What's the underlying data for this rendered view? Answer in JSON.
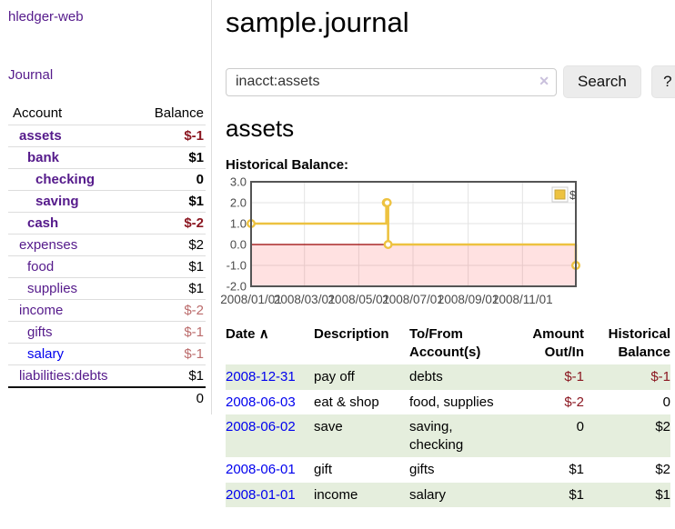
{
  "app": {
    "title": "hledger-web"
  },
  "sidebar": {
    "nav_journal": "Journal",
    "accounts_table": {
      "header_account": "Account",
      "header_balance": "Balance",
      "rows": [
        {
          "name": "assets",
          "depth": 1,
          "balance": "$-1",
          "bold": true,
          "balance_style": "negative"
        },
        {
          "name": "bank",
          "depth": 2,
          "balance": "$1",
          "bold": true,
          "balance_style": "normal"
        },
        {
          "name": "checking",
          "depth": 3,
          "balance": "0",
          "bold": true,
          "balance_style": "normal"
        },
        {
          "name": "saving",
          "depth": 3,
          "balance": "$1",
          "bold": true,
          "balance_style": "normal"
        },
        {
          "name": "cash",
          "depth": 2,
          "balance": "$-2",
          "bold": true,
          "balance_style": "negative"
        },
        {
          "name": "expenses",
          "depth": 1,
          "balance": "$2",
          "bold": false,
          "balance_style": "normal"
        },
        {
          "name": "food",
          "depth": 2,
          "balance": "$1",
          "bold": false,
          "balance_style": "normal"
        },
        {
          "name": "supplies",
          "depth": 2,
          "balance": "$1",
          "bold": false,
          "balance_style": "normal"
        },
        {
          "name": "income",
          "depth": 1,
          "balance": "$-2",
          "bold": false,
          "balance_style": "negative-dim"
        },
        {
          "name": "gifts",
          "depth": 2,
          "balance": "$-1",
          "bold": false,
          "balance_style": "negative-dim"
        },
        {
          "name": "salary",
          "depth": 2,
          "balance": "$-1",
          "bold": false,
          "balance_style": "negative-dim",
          "link_style": "unvisited"
        },
        {
          "name": "liabilities:debts",
          "depth": 1,
          "balance": "$1",
          "bold": false,
          "balance_style": "normal"
        }
      ],
      "total": "0"
    }
  },
  "header": {
    "title": "sample.journal"
  },
  "search": {
    "value": "inacct:assets",
    "clear_icon": "✕",
    "button_label": "Search",
    "help_label": "?"
  },
  "account_page": {
    "title": "assets",
    "chart_label": "Historical Balance:"
  },
  "chart_data": {
    "type": "line",
    "step": true,
    "title": "Historical Balance:",
    "series": [
      {
        "name": "$",
        "color": "#edc240",
        "points": [
          [
            "2008-01-01",
            1
          ],
          [
            "2008-06-01",
            2
          ],
          [
            "2008-06-02",
            2
          ],
          [
            "2008-06-03",
            0
          ],
          [
            "2008-12-31",
            -1
          ]
        ]
      }
    ],
    "x_range": [
      "2008-01-01",
      "2008-12-31"
    ],
    "x_ticks": [
      "2008/01/01",
      "2008/03/01",
      "2008/05/01",
      "2008/07/01",
      "2008/09/01",
      "2008/11/01"
    ],
    "y_ticks": [
      "3.0",
      "2.0",
      "1.0",
      "0.0",
      "-1.0",
      "-2.0"
    ],
    "ylim": [
      -2,
      3
    ],
    "grid": true,
    "legend": {
      "label": "$",
      "position": "top-right"
    },
    "negative_region_color": "#ffdddd",
    "zero_line_color": "#990000"
  },
  "register_table": {
    "headers": {
      "date": "Date",
      "sort_arrow": "∧",
      "description": "Description",
      "accounts": "To/From Account(s)",
      "amount": "Amount Out/In",
      "balance": "Historical Balance"
    },
    "rows": [
      {
        "date": "2008-12-31",
        "description": "pay off",
        "accounts": "debts",
        "amount": "$-1",
        "amount_style": "negative",
        "balance": "$-1",
        "balance_style": "negative",
        "stripe": true
      },
      {
        "date": "2008-06-03",
        "description": "eat & shop",
        "accounts": "food, supplies",
        "amount": "$-2",
        "amount_style": "negative",
        "balance": "0",
        "balance_style": "normal",
        "stripe": false
      },
      {
        "date": "2008-06-02",
        "description": "save",
        "accounts": "saving, checking",
        "amount": "0",
        "amount_style": "normal",
        "balance": "$2",
        "balance_style": "normal",
        "stripe": true
      },
      {
        "date": "2008-06-01",
        "description": "gift",
        "accounts": "gifts",
        "amount": "$1",
        "amount_style": "normal",
        "balance": "$2",
        "balance_style": "normal",
        "stripe": false
      },
      {
        "date": "2008-01-01",
        "description": "income",
        "accounts": "salary",
        "amount": "$1",
        "amount_style": "normal",
        "balance": "$1",
        "balance_style": "normal",
        "stripe": true
      }
    ]
  },
  "colors": {
    "link_visited_purple": "#551a8b",
    "link_blue": "#0000ee",
    "negative": "#8b1721",
    "negative_dim": "#bb6b6b",
    "row_stripe_green": "#e5eedd",
    "chart_line_gold": "#edc240",
    "chart_negative_pink": "#ffdddd",
    "chart_zero_line": "#990000",
    "chart_border": "#545454"
  }
}
